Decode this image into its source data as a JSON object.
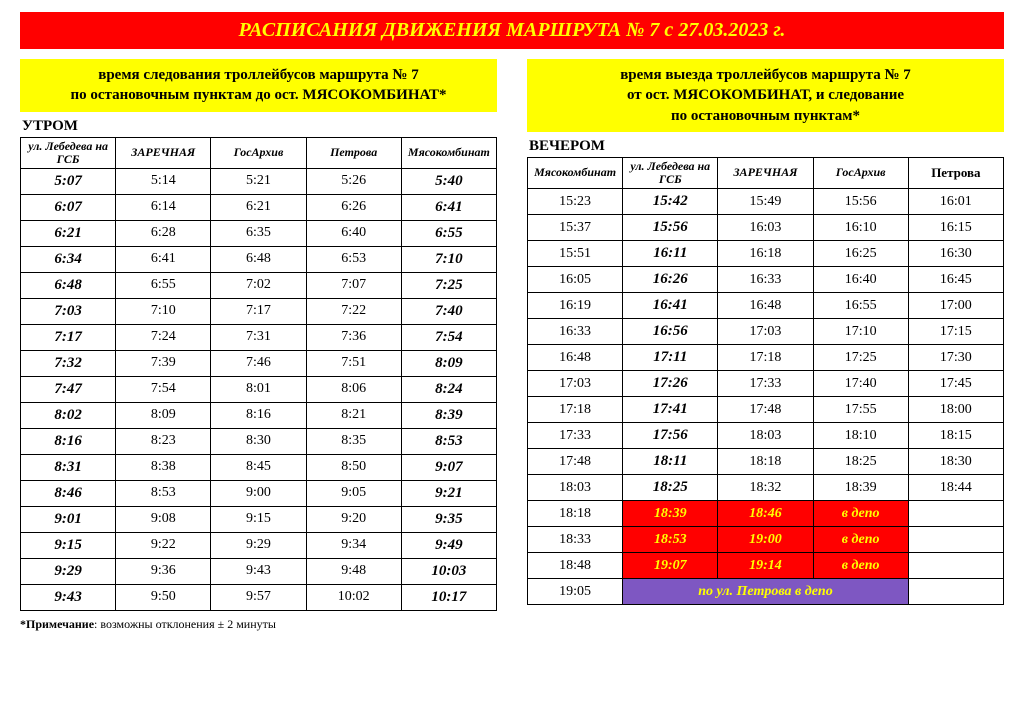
{
  "banner": "РАСПИСАНИЯ ДВИЖЕНИЯ МАРШРУТА № 7 с 27.03.2023 г.",
  "left": {
    "subheader_l1": "время следования троллейбусов маршрута № 7",
    "subheader_l2": "по остановочным пунктам до ост. МЯСОКОМБИНАТ*",
    "timeofday": "УТРОМ",
    "columns": [
      {
        "label": "ул. Лебедева на ГСБ",
        "italic": true
      },
      {
        "label": "ЗАРЕЧНАЯ",
        "italic": true
      },
      {
        "label": "ГосАрхив",
        "italic": true
      },
      {
        "label": "Петрова",
        "italic": true
      },
      {
        "label": "Мясокомбинат",
        "italic": true
      }
    ],
    "rows": [
      [
        {
          "t": "5:07",
          "s": "bi"
        },
        {
          "t": "5:14"
        },
        {
          "t": "5:21"
        },
        {
          "t": "5:26"
        },
        {
          "t": "5:40",
          "s": "bi"
        }
      ],
      [
        {
          "t": "6:07",
          "s": "bi"
        },
        {
          "t": "6:14"
        },
        {
          "t": "6:21"
        },
        {
          "t": "6:26"
        },
        {
          "t": "6:41",
          "s": "bi"
        }
      ],
      [
        {
          "t": "6:21",
          "s": "bi"
        },
        {
          "t": "6:28"
        },
        {
          "t": "6:35"
        },
        {
          "t": "6:40"
        },
        {
          "t": "6:55",
          "s": "bi"
        }
      ],
      [
        {
          "t": "6:34",
          "s": "bi"
        },
        {
          "t": "6:41"
        },
        {
          "t": "6:48"
        },
        {
          "t": "6:53"
        },
        {
          "t": "7:10",
          "s": "bi"
        }
      ],
      [
        {
          "t": "6:48",
          "s": "bi"
        },
        {
          "t": "6:55"
        },
        {
          "t": "7:02"
        },
        {
          "t": "7:07"
        },
        {
          "t": "7:25",
          "s": "bi"
        }
      ],
      [
        {
          "t": "7:03",
          "s": "bi"
        },
        {
          "t": "7:10"
        },
        {
          "t": "7:17"
        },
        {
          "t": "7:22"
        },
        {
          "t": "7:40",
          "s": "bi"
        }
      ],
      [
        {
          "t": "7:17",
          "s": "bi"
        },
        {
          "t": "7:24"
        },
        {
          "t": "7:31"
        },
        {
          "t": "7:36"
        },
        {
          "t": "7:54",
          "s": "bi"
        }
      ],
      [
        {
          "t": "7:32",
          "s": "bi"
        },
        {
          "t": "7:39"
        },
        {
          "t": "7:46"
        },
        {
          "t": "7:51"
        },
        {
          "t": "8:09",
          "s": "bi"
        }
      ],
      [
        {
          "t": "7:47",
          "s": "bi"
        },
        {
          "t": "7:54"
        },
        {
          "t": "8:01"
        },
        {
          "t": "8:06"
        },
        {
          "t": "8:24",
          "s": "bi"
        }
      ],
      [
        {
          "t": "8:02",
          "s": "bi"
        },
        {
          "t": "8:09"
        },
        {
          "t": "8:16"
        },
        {
          "t": "8:21"
        },
        {
          "t": "8:39",
          "s": "bi"
        }
      ],
      [
        {
          "t": "8:16",
          "s": "bi"
        },
        {
          "t": "8:23"
        },
        {
          "t": "8:30"
        },
        {
          "t": "8:35"
        },
        {
          "t": "8:53",
          "s": "bi"
        }
      ],
      [
        {
          "t": "8:31",
          "s": "bi"
        },
        {
          "t": "8:38"
        },
        {
          "t": "8:45"
        },
        {
          "t": "8:50"
        },
        {
          "t": "9:07",
          "s": "bi"
        }
      ],
      [
        {
          "t": "8:46",
          "s": "bi"
        },
        {
          "t": "8:53"
        },
        {
          "t": "9:00"
        },
        {
          "t": "9:05"
        },
        {
          "t": "9:21",
          "s": "bi"
        }
      ],
      [
        {
          "t": "9:01",
          "s": "bi"
        },
        {
          "t": "9:08"
        },
        {
          "t": "9:15"
        },
        {
          "t": "9:20"
        },
        {
          "t": "9:35",
          "s": "bi"
        }
      ],
      [
        {
          "t": "9:15",
          "s": "bi"
        },
        {
          "t": "9:22"
        },
        {
          "t": "9:29"
        },
        {
          "t": "9:34"
        },
        {
          "t": "9:49",
          "s": "bi"
        }
      ],
      [
        {
          "t": "9:29",
          "s": "bi"
        },
        {
          "t": "9:36"
        },
        {
          "t": "9:43"
        },
        {
          "t": "9:48"
        },
        {
          "t": "10:03",
          "s": "bi"
        }
      ],
      [
        {
          "t": "9:43",
          "s": "bi"
        },
        {
          "t": "9:50"
        },
        {
          "t": "9:57"
        },
        {
          "t": "10:02"
        },
        {
          "t": "10:17",
          "s": "bi"
        }
      ]
    ]
  },
  "right": {
    "subheader_l1": "время выезда троллейбусов маршрута № 7",
    "subheader_l2": "от ост. МЯСОКОМБИНАТ, и следование",
    "subheader_l3": "по остановочным пунктам*",
    "timeofday": "ВЕЧЕРОМ",
    "columns": [
      {
        "label": "Мясокомбинат",
        "italic": true
      },
      {
        "label": "ул. Лебедева на ГСБ",
        "italic": true
      },
      {
        "label": "ЗАРЕЧНАЯ",
        "italic": true
      },
      {
        "label": "ГосАрхив",
        "italic": true
      },
      {
        "label": "Петрова",
        "italic": false
      }
    ],
    "rows": [
      [
        {
          "t": "15:23"
        },
        {
          "t": "15:42",
          "s": "bi"
        },
        {
          "t": "15:49"
        },
        {
          "t": "15:56"
        },
        {
          "t": "16:01"
        }
      ],
      [
        {
          "t": "15:37"
        },
        {
          "t": "15:56",
          "s": "bi"
        },
        {
          "t": "16:03"
        },
        {
          "t": "16:10"
        },
        {
          "t": "16:15"
        }
      ],
      [
        {
          "t": "15:51"
        },
        {
          "t": "16:11",
          "s": "bi"
        },
        {
          "t": "16:18"
        },
        {
          "t": "16:25"
        },
        {
          "t": "16:30"
        }
      ],
      [
        {
          "t": "16:05"
        },
        {
          "t": "16:26",
          "s": "bi"
        },
        {
          "t": "16:33"
        },
        {
          "t": "16:40"
        },
        {
          "t": "16:45"
        }
      ],
      [
        {
          "t": "16:19"
        },
        {
          "t": "16:41",
          "s": "bi"
        },
        {
          "t": "16:48"
        },
        {
          "t": "16:55"
        },
        {
          "t": "17:00"
        }
      ],
      [
        {
          "t": "16:33"
        },
        {
          "t": "16:56",
          "s": "bi"
        },
        {
          "t": "17:03"
        },
        {
          "t": "17:10"
        },
        {
          "t": "17:15"
        }
      ],
      [
        {
          "t": "16:48"
        },
        {
          "t": "17:11",
          "s": "bi"
        },
        {
          "t": "17:18"
        },
        {
          "t": "17:25"
        },
        {
          "t": "17:30"
        }
      ],
      [
        {
          "t": "17:03"
        },
        {
          "t": "17:26",
          "s": "bi"
        },
        {
          "t": "17:33"
        },
        {
          "t": "17:40"
        },
        {
          "t": "17:45"
        }
      ],
      [
        {
          "t": "17:18"
        },
        {
          "t": "17:41",
          "s": "bi"
        },
        {
          "t": "17:48"
        },
        {
          "t": "17:55"
        },
        {
          "t": "18:00"
        }
      ],
      [
        {
          "t": "17:33"
        },
        {
          "t": "17:56",
          "s": "bi"
        },
        {
          "t": "18:03"
        },
        {
          "t": "18:10"
        },
        {
          "t": "18:15"
        }
      ],
      [
        {
          "t": "17:48"
        },
        {
          "t": "18:11",
          "s": "bi"
        },
        {
          "t": "18:18"
        },
        {
          "t": "18:25"
        },
        {
          "t": "18:30"
        }
      ],
      [
        {
          "t": "18:03"
        },
        {
          "t": "18:25",
          "s": "bi"
        },
        {
          "t": "18:32"
        },
        {
          "t": "18:39"
        },
        {
          "t": "18:44"
        }
      ],
      [
        {
          "t": "18:18"
        },
        {
          "t": "18:39",
          "s": "red"
        },
        {
          "t": "18:46",
          "s": "red"
        },
        {
          "t": "в депо",
          "s": "red"
        },
        {
          "t": "",
          "s": "empty"
        }
      ],
      [
        {
          "t": "18:33"
        },
        {
          "t": "18:53",
          "s": "red"
        },
        {
          "t": "19:00",
          "s": "red"
        },
        {
          "t": "в депо",
          "s": "red"
        },
        {
          "t": "",
          "s": "empty"
        }
      ],
      [
        {
          "t": "18:48"
        },
        {
          "t": "19:07",
          "s": "red"
        },
        {
          "t": "19:14",
          "s": "red"
        },
        {
          "t": "в депо",
          "s": "red"
        },
        {
          "t": "",
          "s": "empty"
        }
      ],
      [
        {
          "t": "19:05"
        },
        {
          "t": "по ул. Петрова в депо",
          "s": "purple",
          "span": 3
        },
        {
          "t": "",
          "s": "empty"
        }
      ]
    ]
  },
  "footnote_bold": "*Примечание",
  "footnote_rest": ": возможны отклонения ± 2 минуты",
  "colors": {
    "banner_bg": "#ff0000",
    "banner_fg": "#ffff00",
    "sub_bg": "#ffff00",
    "red_bg": "#ff0000",
    "red_fg": "#ffff00",
    "purple_bg": "#7e57c2",
    "purple_fg": "#ffff00",
    "border": "#000000"
  }
}
